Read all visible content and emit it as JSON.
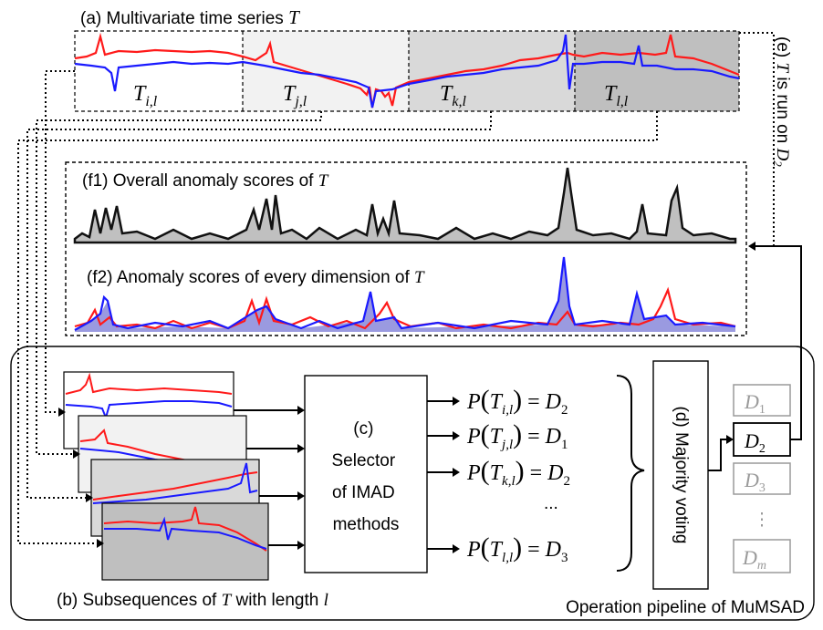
{
  "panel_a": {
    "title": "(a) Multivariate time series T",
    "segments": [
      "T_{i,l}",
      "T_{j,l}",
      "T_{k,l}",
      "T_{l,l}"
    ],
    "segment_fills": [
      "#ffffff",
      "#f2f2f2",
      "#d9d9d9",
      "#bfbfbf"
    ]
  },
  "panel_e": {
    "label": "(e) T is run on D_2"
  },
  "panel_f1": {
    "label": "(f1) Overall anomaly scores of T"
  },
  "panel_f2": {
    "label": "(f2) Anomaly scores of every dimension of T"
  },
  "panel_b": {
    "label": "(b) Subsequences of T with length l"
  },
  "panel_c": {
    "lines": [
      "(c)",
      "Selector",
      "of IMAD",
      "methods"
    ]
  },
  "predictions": [
    {
      "seg": "i",
      "det": "2"
    },
    {
      "seg": "j",
      "det": "1"
    },
    {
      "seg": "k",
      "det": "2"
    },
    {
      "ellipsis": "..."
    },
    {
      "seg": "l",
      "det": "3"
    }
  ],
  "panel_d": {
    "label": "(d) Majority voting"
  },
  "detectors": [
    "D_1",
    "D_2",
    "D_3",
    "⋮",
    "D_m"
  ],
  "selected_detector": "D_2",
  "pipeline_label": "Operation pipeline of MuMSAD",
  "colors": {
    "red": "#ff1a1a",
    "blue": "#1a1aff",
    "score_fill": "#c0c0c0",
    "blue_fill": "#9a9ae0"
  }
}
